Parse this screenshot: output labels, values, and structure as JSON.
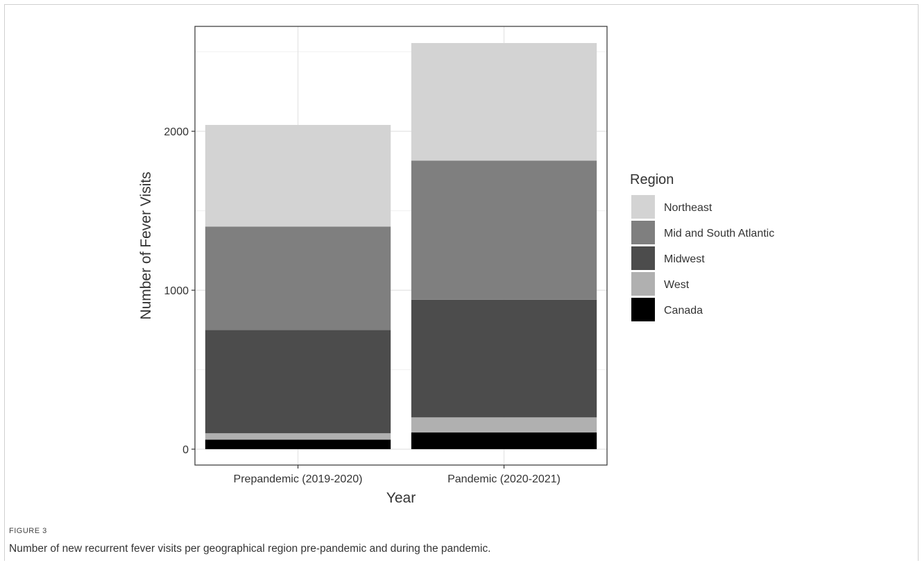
{
  "figure": {
    "label": "FIGURE 3",
    "caption": "Number of new recurrent fever visits per geographical region pre-pandemic and during the pandemic."
  },
  "chart_data": {
    "type": "bar",
    "stacked": true,
    "xlabel": "Year",
    "ylabel": "Number of Fever Visits",
    "categories": [
      "Prepandemic (2019-2020)",
      "Pandemic (2020-2021)"
    ],
    "yticks": [
      0,
      1000,
      2000
    ],
    "ylim": [
      -100,
      2660
    ],
    "grid": true,
    "legend": {
      "title": "Region",
      "placement": "right"
    },
    "series": [
      {
        "name": "Canada",
        "color": "#000000",
        "values": [
          60,
          105
        ]
      },
      {
        "name": "West",
        "color": "#b0b0b0",
        "values": [
          40,
          95
        ]
      },
      {
        "name": "Midwest",
        "color": "#4c4c4c",
        "values": [
          650,
          740
        ]
      },
      {
        "name": "Mid and South Atlantic",
        "color": "#7f7f7f",
        "values": [
          650,
          875
        ]
      },
      {
        "name": "Northeast",
        "color": "#d3d3d3",
        "values": [
          640,
          740
        ]
      }
    ],
    "legend_order": [
      "Northeast",
      "Mid and South Atlantic",
      "Midwest",
      "West",
      "Canada"
    ]
  }
}
